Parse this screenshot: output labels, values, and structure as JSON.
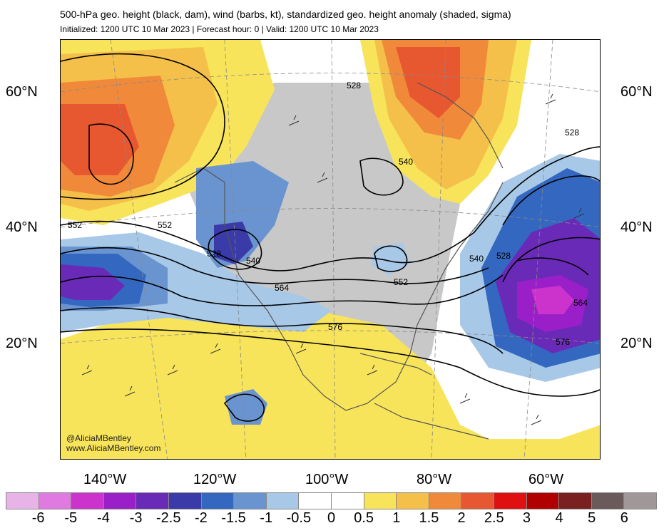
{
  "header": {
    "title": "500-hPa geo. height (black, dam), wind (barbs, kt), standardized geo. height anomaly (shaded, sigma)",
    "subtitle": "Initialized: 1200 UTC 10 Mar 2023 | Forecast hour: 0 | Valid: 1200 UTC 10 Mar 2023"
  },
  "map": {
    "lat_labels": [
      "60°N",
      "40°N",
      "20°N"
    ],
    "lon_labels": [
      "140°W",
      "120°W",
      "100°W",
      "80°W",
      "60°W"
    ],
    "height_contours_dam": [
      "528",
      "540",
      "552",
      "564",
      "576"
    ],
    "contour_labels": {
      "l1": "552",
      "l2": "552",
      "l3": "528",
      "l4": "540",
      "l5": "564",
      "l6": "576",
      "l7": "552",
      "l8": "528",
      "l9": "540",
      "l10": "528",
      "l11": "540",
      "l12": "528",
      "l13": "564",
      "l14": "576"
    },
    "credit_line1": "@AliciaMBentley",
    "credit_line2": "www.AliciaMBentley.com"
  },
  "colorbar": {
    "ticks": [
      "-6",
      "-5",
      "-4",
      "-3",
      "-2.5",
      "-2",
      "-1.5",
      "-1",
      "-0.5",
      "0",
      "0.5",
      "1",
      "1.5",
      "2",
      "2.5",
      "3",
      "4",
      "5",
      "6"
    ],
    "colors": [
      "#e8b4e8",
      "#e07ae0",
      "#cc33cc",
      "#9a1fc8",
      "#6a2ab8",
      "#3a3aa8",
      "#3468c0",
      "#6a94d0",
      "#a8c8e8",
      "#ffffff",
      "#ffffff",
      "#f8e45a",
      "#f4c04a",
      "#f08a3a",
      "#e85830",
      "#e01010",
      "#b00000",
      "#7a2020",
      "#6a5a5a",
      "#a09898"
    ]
  },
  "anomaly_colors": {
    "neg_05": "#a8c8e8",
    "neg_1": "#6a94d0",
    "neg_15": "#3468c0",
    "neg_2": "#3a3aa8",
    "neg_25": "#6a2ab8",
    "neg_3": "#9a1fc8",
    "neg_4": "#cc33cc",
    "pos_05": "#f8e45a",
    "pos_1": "#f4c04a",
    "pos_15": "#f08a3a",
    "pos_2": "#e85830",
    "land_gray": "#c8c8c8"
  }
}
